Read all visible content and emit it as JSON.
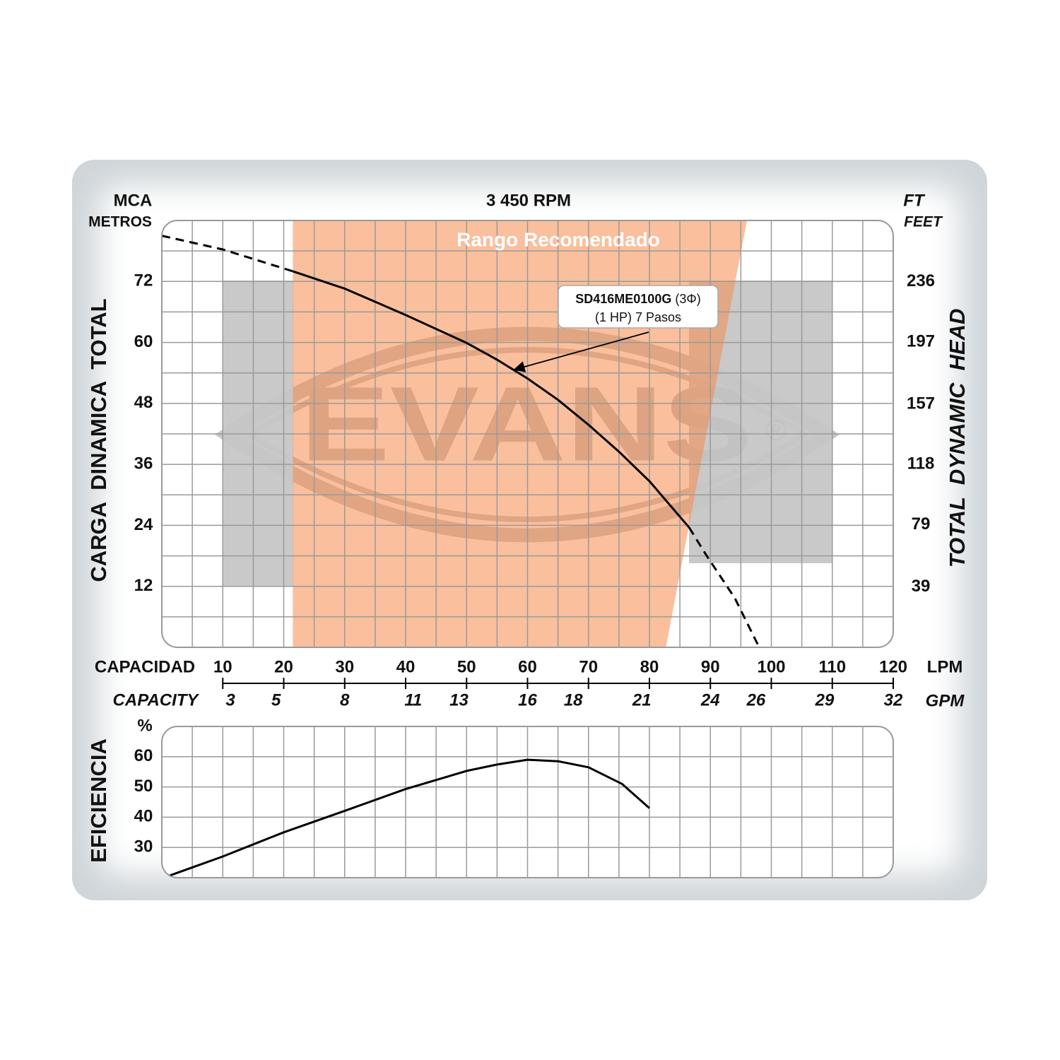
{
  "chart_data": [
    {
      "type": "line",
      "title": "3 450 RPM",
      "y_label_top": "MCA",
      "y_label_sub": "METROS",
      "y_title": "CARGA  DINAMICA  TOTAL",
      "y2_label_top": "FT",
      "y2_label_sub": "FEET",
      "y2_title": "TOTAL  DYNAMIC  HEAD",
      "x_label": "CAPACIDAD",
      "x_unit": "LPM",
      "x2_label": "CAPACITY",
      "x2_unit": "GPM",
      "xlim": [
        0,
        120
      ],
      "xticks": [
        10,
        20,
        30,
        40,
        50,
        60,
        70,
        80,
        90,
        100,
        110,
        120
      ],
      "x_minor_ticks": [
        5,
        15,
        25,
        35,
        45,
        55,
        65,
        75,
        85,
        95,
        105,
        115
      ],
      "x2lim": [
        0,
        32
      ],
      "x2ticks": [
        3,
        5,
        8,
        11,
        13,
        16,
        18,
        21,
        24,
        26,
        29,
        32
      ],
      "ylim": [
        0,
        84
      ],
      "yticks": [
        12,
        24,
        36,
        48,
        60,
        72
      ],
      "y_minor_ticks": [
        6,
        18,
        30,
        42,
        54,
        66,
        78
      ],
      "y2lim": [
        0,
        275.6
      ],
      "y2ticks": [
        39,
        79,
        118,
        157,
        197,
        236
      ],
      "grid": true,
      "recommended_range": {
        "label": "Rango Recomendado",
        "color": "#f58a4a",
        "x_left": 21.5,
        "x_right_top": 96,
        "x_right_bottom": 82.7
      },
      "watermark": "EVANS",
      "watermark_mark": "®",
      "annotation": {
        "model": "SD416ME0100G",
        "phase": "(3Φ)",
        "detail": "(1 HP) 7 Pasos"
      },
      "series": [
        {
          "color": "#000000",
          "dashed": true,
          "x": [
            0,
            10,
            21.5
          ],
          "values": [
            81,
            78.3,
            74
          ]
        },
        {
          "color": "#000000",
          "dashed": false,
          "x": [
            21.5,
            30,
            40,
            50,
            55,
            60,
            65,
            70,
            75,
            80,
            83,
            86.5
          ],
          "values": [
            74,
            70.6,
            65.4,
            59.9,
            56.6,
            52.9,
            48.7,
            43.8,
            38.5,
            32.7,
            28.5,
            23.6
          ]
        },
        {
          "color": "#000000",
          "dashed": true,
          "x": [
            86.5,
            89.4,
            94,
            98
          ],
          "values": [
            23.6,
            18,
            9.7,
            0
          ]
        }
      ]
    },
    {
      "type": "line",
      "y_unit": "%",
      "y_title": "EFICIENCIA",
      "ylim": [
        20,
        70
      ],
      "yticks": [
        30,
        40,
        50,
        60
      ],
      "grid": true,
      "series": [
        {
          "color": "#000000",
          "x": [
            1,
            10,
            20,
            30,
            40,
            50,
            55,
            60,
            65,
            70,
            75.5,
            80
          ],
          "values": [
            20.5,
            27,
            35,
            42.1,
            49.3,
            55.3,
            57.4,
            59,
            58.5,
            56.5,
            51,
            43
          ]
        }
      ]
    }
  ]
}
